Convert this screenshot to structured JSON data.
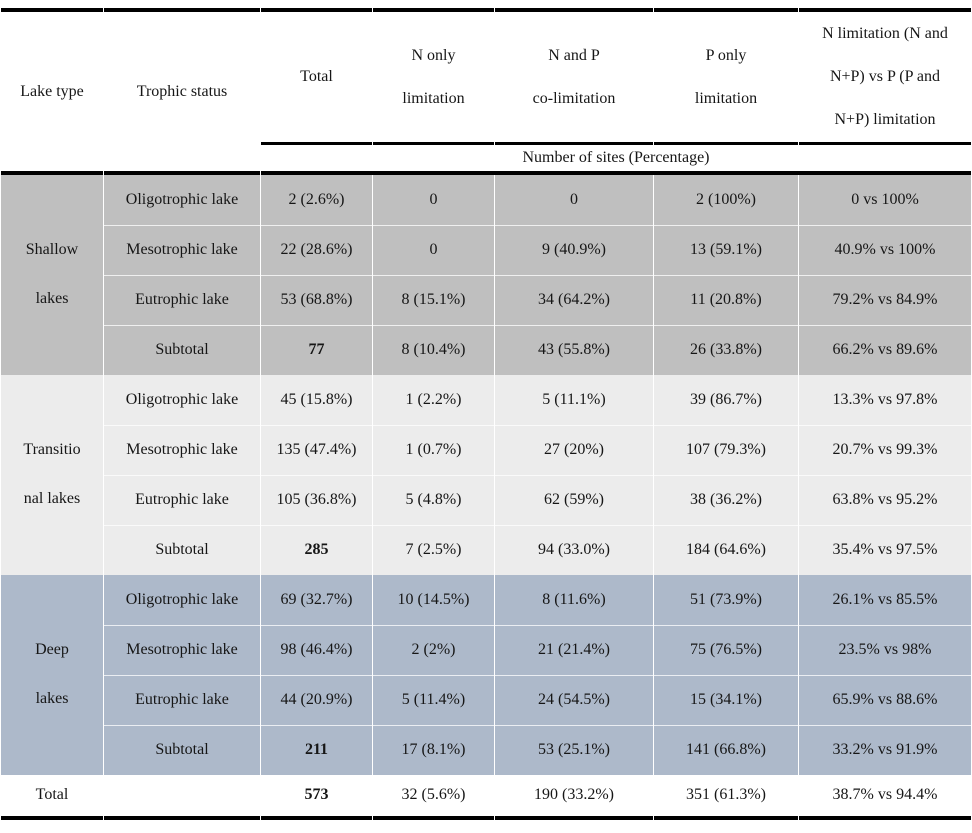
{
  "table": {
    "columns": [
      {
        "label": "Lake type"
      },
      {
        "label": "Trophic status"
      },
      {
        "label": "Total"
      },
      {
        "label": "N only\nlimitation"
      },
      {
        "label": "N and P\nco-limitation"
      },
      {
        "label": "P only\nlimitation"
      },
      {
        "label": "N limitation (N and\nN+P) vs P (P and\nN+P) limitation"
      }
    ],
    "units_banner": "Number of sites (Percentage)",
    "groups": [
      {
        "lake_type": "Shallow\nlakes",
        "bg": "#bfbfbf",
        "rows": [
          {
            "cells": [
              "Oligotrophic lake",
              "2 (2.6%)",
              "0",
              "0",
              "2 (100%)",
              "0 vs 100%"
            ],
            "is_subtotal": false
          },
          {
            "cells": [
              "Mesotrophic lake",
              "22 (28.6%)",
              "0",
              "9 (40.9%)",
              "13 (59.1%)",
              "40.9% vs 100%"
            ],
            "is_subtotal": false
          },
          {
            "cells": [
              "Eutrophic lake",
              "53 (68.8%)",
              "8 (15.1%)",
              "34 (64.2%)",
              "11 (20.8%)",
              "79.2% vs 84.9%"
            ],
            "is_subtotal": false
          },
          {
            "cells": [
              "Subtotal",
              "77",
              "8 (10.4%)",
              "43 (55.8%)",
              "26 (33.8%)",
              "66.2% vs 89.6%"
            ],
            "is_subtotal": true
          }
        ]
      },
      {
        "lake_type": "Transitio\nnal lakes",
        "bg": "#ececec",
        "rows": [
          {
            "cells": [
              "Oligotrophic lake",
              "45 (15.8%)",
              "1 (2.2%)",
              "5 (11.1%)",
              "39 (86.7%)",
              "13.3% vs 97.8%"
            ],
            "is_subtotal": false
          },
          {
            "cells": [
              "Mesotrophic lake",
              "135 (47.4%)",
              "1 (0.7%)",
              "27 (20%)",
              "107 (79.3%)",
              "20.7% vs 99.3%"
            ],
            "is_subtotal": false
          },
          {
            "cells": [
              "Eutrophic lake",
              "105 (36.8%)",
              "5 (4.8%)",
              "62 (59%)",
              "38 (36.2%)",
              "63.8% vs 95.2%"
            ],
            "is_subtotal": false
          },
          {
            "cells": [
              "Subtotal",
              "285",
              "7 (2.5%)",
              "94 (33.0%)",
              "184 (64.6%)",
              "35.4% vs 97.5%"
            ],
            "is_subtotal": true
          }
        ]
      },
      {
        "lake_type": "Deep\nlakes",
        "bg": "#adb9ca",
        "rows": [
          {
            "cells": [
              "Oligotrophic lake",
              "69 (32.7%)",
              "10 (14.5%)",
              "8 (11.6%)",
              "51 (73.9%)",
              "26.1% vs 85.5%"
            ],
            "is_subtotal": false
          },
          {
            "cells": [
              "Mesotrophic lake",
              "98 (46.4%)",
              "2 (2%)",
              "21 (21.4%)",
              "75 (76.5%)",
              "23.5% vs 98%"
            ],
            "is_subtotal": false
          },
          {
            "cells": [
              "Eutrophic lake",
              "44 (20.9%)",
              "5 (11.4%)",
              "24 (54.5%)",
              "15 (34.1%)",
              "65.9% vs 88.6%"
            ],
            "is_subtotal": false
          },
          {
            "cells": [
              "Subtotal",
              "211",
              "17 (8.1%)",
              "53 (25.1%)",
              "141 (66.8%)",
              "33.2% vs 91.9%"
            ],
            "is_subtotal": true
          }
        ]
      }
    ],
    "total_row": {
      "cells": [
        "Total",
        "",
        "573",
        "32 (5.6%)",
        "190 (33.2%)",
        "351 (61.3%)",
        "38.7% vs 94.4%"
      ]
    }
  },
  "colors": {
    "shallow_bg": "#bfbfbf",
    "transitional_bg": "#ececec",
    "deep_bg": "#adb9ca",
    "rule": "#000000",
    "text": "#161616"
  }
}
